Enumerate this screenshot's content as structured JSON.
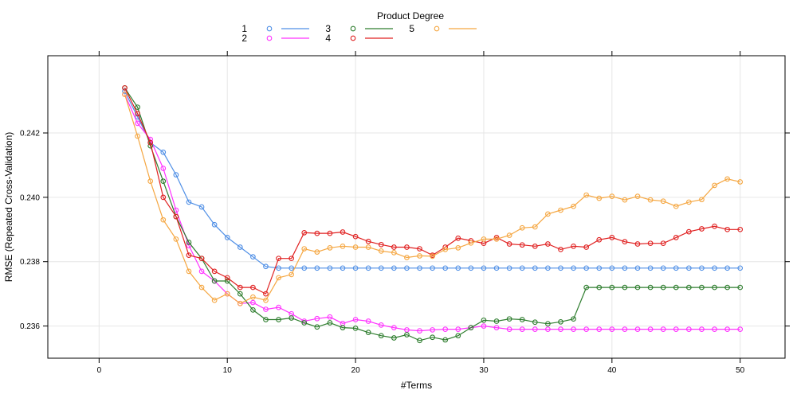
{
  "chart_data": {
    "type": "line",
    "title": "",
    "xlabel": "#Terms",
    "ylabel": "RMSE (Repeated Cross-Validation)",
    "legend_title": "Product Degree",
    "legend_position": "top",
    "grid": true,
    "xlim": [
      -4,
      53.5
    ],
    "ylim": [
      0.235,
      0.2444
    ],
    "x_ticks": [
      0,
      10,
      20,
      30,
      40,
      50
    ],
    "x_tick_labels": [
      "0",
      "10",
      "20",
      "30",
      "40",
      "50"
    ],
    "y_ticks": [
      0.236,
      0.238,
      0.24,
      0.242
    ],
    "y_tick_labels": [
      "0.236",
      "0.238",
      "0.240",
      "0.242"
    ],
    "series": [
      {
        "name": "1",
        "color": "#4f8fe6",
        "x": [
          2,
          3,
          4,
          5,
          6,
          7,
          8,
          9,
          10,
          11,
          12,
          13,
          14,
          15,
          16,
          17,
          18,
          19,
          20,
          21,
          22,
          23,
          24,
          25,
          26,
          27,
          28,
          29,
          30,
          31,
          32,
          33,
          34,
          35,
          36,
          37,
          38,
          39,
          40,
          41,
          42,
          43,
          44,
          45,
          46,
          47,
          48,
          49,
          50
        ],
        "values": [
          0.2433,
          0.2425,
          0.2417,
          0.2414,
          0.2407,
          0.23985,
          0.2397,
          0.23915,
          0.23875,
          0.23845,
          0.23815,
          0.23785,
          0.2378,
          0.2378,
          0.2378,
          0.2378,
          0.2378,
          0.2378,
          0.2378,
          0.2378,
          0.2378,
          0.2378,
          0.2378,
          0.2378,
          0.2378,
          0.2378,
          0.2378,
          0.2378,
          0.2378,
          0.2378,
          0.2378,
          0.2378,
          0.2378,
          0.2378,
          0.2378,
          0.2378,
          0.2378,
          0.2378,
          0.2378,
          0.2378,
          0.2378,
          0.2378,
          0.2378,
          0.2378,
          0.2378,
          0.2378,
          0.2378,
          0.2378,
          0.2378
        ]
      },
      {
        "name": "2",
        "color": "#ff33ff",
        "x": [
          2,
          3,
          4,
          5,
          6,
          7,
          8,
          9,
          10,
          11,
          12,
          13,
          14,
          15,
          16,
          17,
          18,
          19,
          20,
          21,
          22,
          23,
          24,
          25,
          26,
          27,
          28,
          29,
          30,
          31,
          32,
          33,
          34,
          35,
          36,
          37,
          38,
          39,
          40,
          41,
          42,
          43,
          44,
          45,
          46,
          47,
          48,
          49,
          50
        ],
        "values": [
          0.2432,
          0.2423,
          0.2418,
          0.2409,
          0.2396,
          0.2385,
          0.2377,
          0.2374,
          0.237,
          0.2367,
          0.23673,
          0.23652,
          0.23658,
          0.23638,
          0.23615,
          0.23623,
          0.23628,
          0.23608,
          0.2362,
          0.23615,
          0.23603,
          0.23595,
          0.23588,
          0.23585,
          0.23588,
          0.2359,
          0.2359,
          0.23595,
          0.236,
          0.23595,
          0.2359,
          0.2359,
          0.2359,
          0.2359,
          0.2359,
          0.2359,
          0.2359,
          0.2359,
          0.2359,
          0.2359,
          0.2359,
          0.2359,
          0.2359,
          0.2359,
          0.2359,
          0.2359,
          0.2359,
          0.2359,
          0.2359
        ]
      },
      {
        "name": "3",
        "color": "#2e7d2e",
        "x": [
          2,
          3,
          4,
          5,
          6,
          7,
          8,
          9,
          10,
          11,
          12,
          13,
          14,
          15,
          16,
          17,
          18,
          19,
          20,
          21,
          22,
          23,
          24,
          25,
          26,
          27,
          28,
          29,
          30,
          31,
          32,
          33,
          34,
          35,
          36,
          37,
          38,
          39,
          40,
          41,
          42,
          43,
          44,
          45,
          46,
          47,
          48,
          49,
          50
        ],
        "values": [
          0.2434,
          0.2428,
          0.2416,
          0.2405,
          0.2394,
          0.2386,
          0.2381,
          0.2374,
          0.2374,
          0.237,
          0.2365,
          0.2362,
          0.2362,
          0.23625,
          0.2361,
          0.23597,
          0.2361,
          0.23595,
          0.23593,
          0.2358,
          0.2357,
          0.23563,
          0.23573,
          0.23555,
          0.23565,
          0.23557,
          0.2357,
          0.23595,
          0.23618,
          0.23615,
          0.23622,
          0.2362,
          0.23612,
          0.23607,
          0.23613,
          0.23622,
          0.2372,
          0.2372,
          0.2372,
          0.2372,
          0.2372,
          0.2372,
          0.2372,
          0.2372,
          0.2372,
          0.2372,
          0.2372,
          0.2372,
          0.2372
        ]
      },
      {
        "name": "4",
        "color": "#e02020",
        "x": [
          2,
          3,
          4,
          5,
          6,
          7,
          8,
          9,
          10,
          11,
          12,
          13,
          14,
          15,
          16,
          17,
          18,
          19,
          20,
          21,
          22,
          23,
          24,
          25,
          26,
          27,
          28,
          29,
          30,
          31,
          32,
          33,
          34,
          35,
          36,
          37,
          38,
          39,
          40,
          41,
          42,
          43,
          44,
          45,
          46,
          47,
          48,
          49,
          50
        ],
        "values": [
          0.2434,
          0.2426,
          0.2417,
          0.24,
          0.2394,
          0.2382,
          0.2381,
          0.2377,
          0.2375,
          0.2372,
          0.2372,
          0.237,
          0.2381,
          0.2381,
          0.2389,
          0.23888,
          0.23888,
          0.23892,
          0.23878,
          0.23863,
          0.23853,
          0.23845,
          0.23845,
          0.2384,
          0.2382,
          0.23845,
          0.23873,
          0.23865,
          0.23857,
          0.23875,
          0.23855,
          0.23852,
          0.23848,
          0.23855,
          0.23838,
          0.23848,
          0.23845,
          0.23868,
          0.23875,
          0.23862,
          0.23855,
          0.23857,
          0.23857,
          0.23875,
          0.23893,
          0.23902,
          0.2391,
          0.239,
          0.239
        ]
      },
      {
        "name": "5",
        "color": "#f5a742",
        "x": [
          2,
          3,
          4,
          5,
          6,
          7,
          8,
          9,
          10,
          11,
          12,
          13,
          14,
          15,
          16,
          17,
          18,
          19,
          20,
          21,
          22,
          23,
          24,
          25,
          26,
          27,
          28,
          29,
          30,
          31,
          32,
          33,
          34,
          35,
          36,
          37,
          38,
          39,
          40,
          41,
          42,
          43,
          44,
          45,
          46,
          47,
          48,
          49,
          50
        ],
        "values": [
          0.2432,
          0.2419,
          0.2405,
          0.2393,
          0.2387,
          0.2377,
          0.2372,
          0.2368,
          0.237,
          0.2367,
          0.2369,
          0.2368,
          0.2375,
          0.2376,
          0.2384,
          0.2383,
          0.23843,
          0.23848,
          0.23845,
          0.23845,
          0.23833,
          0.23828,
          0.23813,
          0.23818,
          0.23817,
          0.23838,
          0.23843,
          0.23858,
          0.2387,
          0.2387,
          0.23882,
          0.23905,
          0.23908,
          0.23948,
          0.2396,
          0.23972,
          0.24007,
          0.23997,
          0.24003,
          0.23992,
          0.24003,
          0.23992,
          0.23988,
          0.23972,
          0.23985,
          0.23993,
          0.24037,
          0.24057,
          0.24048
        ]
      }
    ]
  }
}
